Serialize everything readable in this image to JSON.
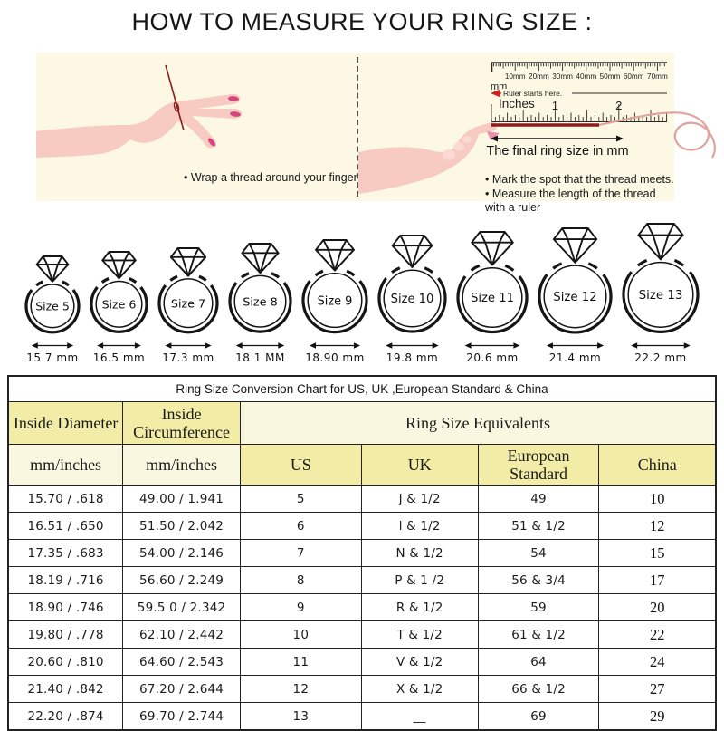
{
  "title": "HOW TO MEASURE YOUR RING SIZE :",
  "colors": {
    "ink": "#111111",
    "panel_cream": "#FCF8E4",
    "skin": "#F7CAC2",
    "skin_light": "#FBDAD3",
    "nail_pink": "#D8447D",
    "thread_dark": "#8B1C1C",
    "thread_pink": "#DFA49B",
    "accent_red": "#CC2222",
    "cell_yellow": "#F2ECA7",
    "cell_cream": "#FAF7E0",
    "table_border": "#222222"
  },
  "panels": {
    "left": {
      "bullet": "• Wrap a thread around your finger"
    },
    "right": {
      "ruler": {
        "mm_labels": [
          "10mm",
          "20mm",
          "30mm",
          "40mm",
          "50mm",
          "60mm",
          "70mm"
        ],
        "mm_unit": "mm",
        "start_note": "Ruler starts here.",
        "inches_label": "Inches",
        "inch_numbers": [
          "1",
          "2"
        ]
      },
      "arrow_label": "The final ring size in mm",
      "bullets": [
        "• Mark the spot that the thread meets.",
        "• Measure the length of the thread with a ruler"
      ]
    }
  },
  "rings": [
    {
      "label": "Size 5",
      "diameter": "15.7 mm"
    },
    {
      "label": "Size 6",
      "diameter": "16.5 mm"
    },
    {
      "label": "Size 7",
      "diameter": "17.3 mm"
    },
    {
      "label": "Size 8",
      "diameter": "18.1 MM"
    },
    {
      "label": "Size 9",
      "diameter": "18.90 mm"
    },
    {
      "label": "Size 10",
      "diameter": "19.8 mm"
    },
    {
      "label": "Size 11",
      "diameter": "20.6 mm"
    },
    {
      "label": "Size 12",
      "diameter": "21.4 mm"
    },
    {
      "label": "Size 13",
      "diameter": "22.2 mm"
    }
  ],
  "table": {
    "title": "Ring Size Conversion Chart for US, UK ,European Standard & China",
    "col_group_headers": {
      "inside_diameter": "Inside Diameter",
      "inside_circumference": "Inside Circumference",
      "equivalents": "Ring Size Equivalents"
    },
    "sub_headers": [
      "mm/inches",
      "mm/inches",
      "US",
      "UK",
      "European Standard",
      "China"
    ],
    "rows": [
      [
        "15.70 / .618",
        "49.00 / 1.941",
        "5",
        "J & 1/2",
        "49",
        "10"
      ],
      [
        "16.51 / .650",
        "51.50 / 2.042",
        "6",
        "l & 1/2",
        "51 & 1/2",
        "12"
      ],
      [
        "17.35 / .683",
        "54.00 / 2.146",
        "7",
        "N & 1/2",
        "54",
        "15"
      ],
      [
        "18.19 / .716",
        "56.60 / 2.249",
        "8",
        "P & 1 /2",
        "56 & 3/4",
        "17"
      ],
      [
        "18.90 / .746",
        "59.5 0 / 2.342",
        "9",
        "R & 1/2",
        "59",
        "20"
      ],
      [
        "19.80 / .778",
        "62.10 / 2.442",
        "10",
        "T & 1/2",
        "61 & 1/2",
        "22"
      ],
      [
        "20.60 / .810",
        "64.60 / 2.543",
        "11",
        "V & 1/2",
        "64",
        "24"
      ],
      [
        "21.40 / .842",
        "67.20 / 2.644",
        "12",
        "X & 1/2",
        "66 & 1/2",
        "27"
      ],
      [
        "22.20 / .874",
        "69.70 / 2.744",
        "13",
        "__",
        "69",
        "29"
      ]
    ]
  }
}
